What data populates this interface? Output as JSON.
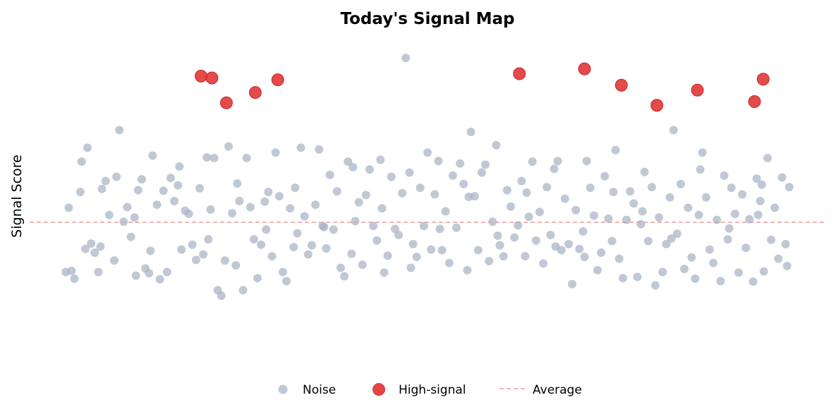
{
  "chart_data": {
    "type": "scatter",
    "title": "Today's Signal Map",
    "xlabel": "",
    "ylabel": "Signal Score",
    "xlim": [
      -0.05,
      1.05
    ],
    "ylim": [
      -2.5,
      3.2
    ],
    "grid": false,
    "legend_placement": "bottom-center",
    "average": 0,
    "colors": {
      "noise": "#a6b0c3",
      "high": "#e03131",
      "average": "#e88b8b"
    },
    "series": [
      {
        "name": "Noise",
        "points": [
          [
            0.0,
            -0.82
          ],
          [
            0.012,
            -0.93
          ],
          [
            0.008,
            -0.8
          ],
          [
            0.02,
            0.5
          ],
          [
            0.022,
            1.0
          ],
          [
            0.03,
            1.23
          ],
          [
            0.035,
            -0.35
          ],
          [
            0.04,
            -0.5
          ],
          [
            0.045,
            -0.82
          ],
          [
            0.048,
            -0.4
          ],
          [
            0.05,
            0.55
          ],
          [
            0.055,
            0.68
          ],
          [
            0.06,
            0.12
          ],
          [
            0.07,
            0.75
          ],
          [
            0.074,
            1.52
          ],
          [
            0.08,
            0.01
          ],
          [
            0.085,
            0.25
          ],
          [
            0.09,
            -0.24
          ],
          [
            0.095,
            0.08
          ],
          [
            0.1,
            0.53
          ],
          [
            0.105,
            0.71
          ],
          [
            0.11,
            -0.76
          ],
          [
            0.115,
            -0.84
          ],
          [
            0.12,
            1.1
          ],
          [
            0.126,
            0.29
          ],
          [
            0.13,
            -0.94
          ],
          [
            0.135,
            0.52
          ],
          [
            0.14,
            -0.82
          ],
          [
            0.145,
            0.73
          ],
          [
            0.15,
            0.35
          ],
          [
            0.155,
            0.61
          ],
          [
            0.16,
            -0.45
          ],
          [
            0.165,
            0.19
          ],
          [
            0.17,
            0.14
          ],
          [
            0.175,
            -0.37
          ],
          [
            0.18,
            -0.62
          ],
          [
            0.185,
            0.56
          ],
          [
            0.19,
            -0.53
          ],
          [
            0.195,
            1.07
          ],
          [
            0.2,
            0.21
          ],
          [
            0.205,
            1.06
          ],
          [
            0.21,
            -1.12
          ],
          [
            0.215,
            -1.21
          ],
          [
            0.22,
            -0.63
          ],
          [
            0.225,
            1.25
          ],
          [
            0.23,
            0.15
          ],
          [
            0.235,
            -0.71
          ],
          [
            0.24,
            0.35
          ],
          [
            0.245,
            -1.12
          ],
          [
            0.25,
            1.06
          ],
          [
            0.255,
            0.25
          ],
          [
            0.26,
            -0.28
          ],
          [
            0.265,
            -0.92
          ],
          [
            0.27,
            -0.37
          ],
          [
            0.275,
            0.34
          ],
          [
            0.28,
            0.5
          ],
          [
            0.285,
            -0.56
          ],
          [
            0.29,
            1.15
          ],
          [
            0.295,
            0.43
          ],
          [
            0.3,
            -0.82
          ],
          [
            0.305,
            -0.97
          ],
          [
            0.31,
            0.23
          ],
          [
            0.315,
            -0.41
          ],
          [
            0.32,
            -0.18
          ],
          [
            0.325,
            1.23
          ],
          [
            0.33,
            0.1
          ],
          [
            0.335,
            -0.53
          ],
          [
            0.34,
            -0.38
          ],
          [
            0.345,
            0.29
          ],
          [
            0.35,
            1.2
          ],
          [
            0.355,
            -0.06
          ],
          [
            0.36,
            -0.43
          ],
          [
            0.365,
            0.78
          ],
          [
            0.37,
            -0.12
          ],
          [
            0.375,
            0.51
          ],
          [
            0.38,
            -0.75
          ],
          [
            0.385,
            -0.89
          ],
          [
            0.39,
            1.0
          ],
          [
            0.395,
            -0.52
          ],
          [
            0.4,
            0.02
          ],
          [
            0.405,
            0.33
          ],
          [
            0.41,
            -0.7
          ],
          [
            0.415,
            0.45
          ],
          [
            0.42,
            0.87
          ],
          [
            0.425,
            -0.06
          ],
          [
            0.43,
            -0.3
          ],
          [
            0.435,
            1.03
          ],
          [
            0.44,
            -0.83
          ],
          [
            0.445,
            -0.55
          ],
          [
            0.45,
            0.75
          ],
          [
            0.455,
            -0.11
          ],
          [
            0.46,
            -0.21
          ],
          [
            0.465,
            0.48
          ],
          [
            0.47,
            2.71
          ],
          [
            0.475,
            0.82
          ],
          [
            0.48,
            -0.36
          ],
          [
            0.485,
            -0.57
          ],
          [
            0.49,
            0.57
          ],
          [
            0.495,
            -0.06
          ],
          [
            0.5,
            1.15
          ],
          [
            0.505,
            -0.45
          ],
          [
            0.51,
            0.46
          ],
          [
            0.515,
            1.01
          ],
          [
            0.52,
            -0.46
          ],
          [
            0.525,
            0.18
          ],
          [
            0.53,
            -0.67
          ],
          [
            0.535,
            0.77
          ],
          [
            0.54,
            -0.09
          ],
          [
            0.545,
            0.97
          ],
          [
            0.55,
            0.63
          ],
          [
            0.555,
            -0.79
          ],
          [
            0.56,
            1.49
          ],
          [
            0.565,
            0.43
          ],
          [
            0.57,
            -0.46
          ],
          [
            0.575,
            0.82
          ],
          [
            0.58,
            0.95
          ],
          [
            0.585,
            -0.64
          ],
          [
            0.59,
            0.01
          ],
          [
            0.595,
            1.27
          ],
          [
            0.6,
            -0.38
          ],
          [
            0.605,
            -0.56
          ],
          [
            0.61,
            0.53
          ],
          [
            0.615,
            0.26
          ],
          [
            0.62,
            -0.25
          ],
          [
            0.625,
            -0.05
          ],
          [
            0.63,
            0.68
          ],
          [
            0.635,
            -0.56
          ],
          [
            0.64,
            0.09
          ],
          [
            0.645,
            1.0
          ],
          [
            0.65,
            -0.3
          ],
          [
            0.655,
            0.17
          ],
          [
            0.66,
            -0.68
          ],
          [
            0.665,
            0.58
          ],
          [
            0.67,
            -0.21
          ],
          [
            0.675,
            0.88
          ],
          [
            0.68,
            1.01
          ],
          [
            0.685,
            -0.46
          ],
          [
            0.69,
            0.39
          ],
          [
            0.695,
            -0.36
          ],
          [
            0.7,
            -1.02
          ],
          [
            0.705,
            0.2
          ],
          [
            0.71,
            -0.44
          ],
          [
            0.715,
            -0.15
          ],
          [
            0.72,
            1.01
          ],
          [
            0.725,
            0.57
          ],
          [
            0.73,
            0.11
          ],
          [
            0.735,
            -0.79
          ],
          [
            0.74,
            -0.5
          ],
          [
            0.745,
            0.76
          ],
          [
            0.75,
            0.06
          ],
          [
            0.755,
            -0.31
          ],
          [
            0.76,
            1.19
          ],
          [
            0.765,
            -0.6
          ],
          [
            0.77,
            -0.92
          ],
          [
            0.775,
            0.04
          ],
          [
            0.78,
            0.51
          ],
          [
            0.785,
            0.31
          ],
          [
            0.79,
            -0.9
          ],
          [
            0.795,
            -0.03
          ],
          [
            0.8,
            0.83
          ],
          [
            0.805,
            -0.31
          ],
          [
            0.81,
            0.58
          ],
          [
            0.815,
            -1.04
          ],
          [
            0.82,
            0.08
          ],
          [
            0.825,
            -0.82
          ],
          [
            0.83,
            -0.36
          ],
          [
            0.835,
            0.41
          ],
          [
            0.84,
            1.52
          ],
          [
            0.845,
            -0.19
          ],
          [
            0.85,
            0.63
          ],
          [
            0.855,
            -0.77
          ],
          [
            0.86,
            0.24
          ],
          [
            0.865,
            -0.58
          ],
          [
            0.87,
            -0.93
          ],
          [
            0.875,
            0.12
          ],
          [
            0.88,
            1.15
          ],
          [
            0.885,
            0.41
          ],
          [
            0.89,
            -0.45
          ],
          [
            0.895,
            -0.67
          ],
          [
            0.9,
            0.04
          ],
          [
            0.905,
            -0.97
          ],
          [
            0.91,
            0.77
          ],
          [
            0.915,
            -0.28
          ],
          [
            0.92,
            0.57
          ],
          [
            0.925,
            0.14
          ],
          [
            0.93,
            -0.83
          ],
          [
            0.935,
            0.46
          ],
          [
            0.94,
            -0.42
          ],
          [
            0.945,
            0.05
          ],
          [
            0.95,
            -0.98
          ],
          [
            0.955,
            0.72
          ],
          [
            0.96,
            0.35
          ],
          [
            0.965,
            -0.81
          ],
          [
            0.97,
            1.06
          ],
          [
            0.975,
            -0.29
          ],
          [
            0.98,
            0.24
          ],
          [
            0.985,
            -0.6
          ],
          [
            0.99,
            0.74
          ],
          [
            0.995,
            -0.36
          ],
          [
            1.0,
            0.58
          ],
          [
            0.004,
            0.24
          ],
          [
            0.027,
            -0.44
          ],
          [
            0.067,
            -0.63
          ],
          [
            0.097,
            -0.88
          ],
          [
            0.117,
            -0.47
          ],
          [
            0.157,
            0.92
          ],
          [
            0.197,
            -0.28
          ],
          [
            0.237,
            0.64
          ],
          [
            0.277,
            -0.12
          ],
          [
            0.317,
            0.57
          ],
          [
            0.357,
            -0.08
          ],
          [
            0.397,
            0.91
          ],
          [
            0.437,
            0.23
          ],
          [
            0.477,
            -0.75
          ],
          [
            0.517,
            -0.11
          ],
          [
            0.557,
            0.42
          ],
          [
            0.597,
            -0.22
          ],
          [
            0.637,
            0.49
          ],
          [
            0.677,
            -0.4
          ],
          [
            0.717,
            -0.57
          ],
          [
            0.757,
            0.5
          ],
          [
            0.797,
            0.18
          ],
          [
            0.837,
            -0.27
          ],
          [
            0.877,
            0.87
          ],
          [
            0.917,
            -0.1
          ],
          [
            0.957,
            0.12
          ],
          [
            0.997,
            -0.72
          ],
          [
            0.962,
            0.62
          ]
        ]
      },
      {
        "name": "High-signal",
        "points": [
          [
            0.187,
            2.41
          ],
          [
            0.202,
            2.38
          ],
          [
            0.222,
            1.97
          ],
          [
            0.262,
            2.14
          ],
          [
            0.293,
            2.35
          ],
          [
            0.627,
            2.45
          ],
          [
            0.717,
            2.53
          ],
          [
            0.768,
            2.26
          ],
          [
            0.817,
            1.93
          ],
          [
            0.873,
            2.18
          ],
          [
            0.952,
            1.99
          ],
          [
            0.964,
            2.36
          ]
        ]
      }
    ],
    "legend": [
      {
        "label": "Noise",
        "marker": "circle"
      },
      {
        "label": "High-signal",
        "marker": "circle"
      },
      {
        "label": "Average",
        "marker": "dashed-line"
      }
    ]
  }
}
